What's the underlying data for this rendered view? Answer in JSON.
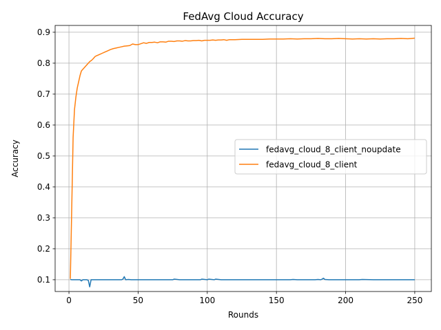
{
  "chart_data": {
    "type": "line",
    "title": "FedAvg Cloud Accuracy",
    "xlabel": "Rounds",
    "ylabel": "Accuracy",
    "xlim": [
      -10,
      262
    ],
    "ylim": [
      0.062,
      0.922
    ],
    "xticks": [
      0,
      50,
      100,
      150,
      200,
      250
    ],
    "yticks": [
      0.1,
      0.2,
      0.3,
      0.4,
      0.5,
      0.6,
      0.7,
      0.8,
      0.9
    ],
    "grid": true,
    "legend_position": "center-right",
    "series": [
      {
        "name": "fedavg_cloud_8_client_noupdate",
        "color": "#1f77b4",
        "x": [
          1,
          2,
          4,
          6,
          8,
          9,
          10,
          12,
          13,
          14,
          15,
          16,
          18,
          20,
          25,
          30,
          35,
          38,
          39,
          40,
          41,
          43,
          45,
          50,
          60,
          70,
          75,
          76,
          80,
          90,
          95,
          96,
          100,
          101,
          105,
          106,
          110,
          120,
          130,
          140,
          150,
          160,
          162,
          165,
          170,
          175,
          178,
          180,
          182,
          183,
          184,
          185,
          188,
          190,
          200,
          210,
          212,
          220,
          230,
          240,
          250
        ],
        "y": [
          0.101,
          0.1,
          0.1,
          0.1,
          0.1,
          0.096,
          0.1,
          0.1,
          0.1,
          0.098,
          0.077,
          0.1,
          0.1,
          0.1,
          0.1,
          0.1,
          0.1,
          0.1,
          0.102,
          0.11,
          0.1,
          0.101,
          0.1,
          0.1,
          0.1,
          0.1,
          0.1,
          0.102,
          0.1,
          0.1,
          0.1,
          0.102,
          0.1,
          0.102,
          0.1,
          0.102,
          0.1,
          0.1,
          0.1,
          0.1,
          0.1,
          0.1,
          0.101,
          0.1,
          0.1,
          0.1,
          0.1,
          0.101,
          0.1,
          0.102,
          0.105,
          0.101,
          0.1,
          0.1,
          0.1,
          0.1,
          0.101,
          0.1,
          0.1,
          0.1,
          0.1
        ]
      },
      {
        "name": "fedavg_cloud_8_client",
        "color": "#ff7f0e",
        "x": [
          1,
          2,
          3,
          4,
          5,
          6,
          7,
          8,
          9,
          10,
          11,
          12,
          13,
          14,
          15,
          16,
          17,
          18,
          19,
          20,
          22,
          24,
          26,
          28,
          30,
          32,
          34,
          36,
          38,
          40,
          42,
          44,
          46,
          48,
          50,
          52,
          54,
          56,
          58,
          60,
          62,
          64,
          66,
          68,
          70,
          72,
          74,
          76,
          78,
          80,
          82,
          84,
          86,
          88,
          90,
          92,
          94,
          96,
          98,
          100,
          102,
          104,
          106,
          108,
          110,
          112,
          114,
          116,
          118,
          120,
          125,
          130,
          135,
          140,
          145,
          150,
          155,
          160,
          165,
          170,
          175,
          180,
          185,
          190,
          195,
          200,
          205,
          210,
          215,
          220,
          225,
          230,
          235,
          240,
          245,
          250
        ],
        "y": [
          0.103,
          0.33,
          0.56,
          0.65,
          0.69,
          0.72,
          0.74,
          0.76,
          0.775,
          0.78,
          0.785,
          0.79,
          0.795,
          0.8,
          0.805,
          0.808,
          0.812,
          0.817,
          0.822,
          0.824,
          0.828,
          0.832,
          0.836,
          0.84,
          0.844,
          0.847,
          0.849,
          0.851,
          0.853,
          0.855,
          0.856,
          0.857,
          0.862,
          0.86,
          0.86,
          0.863,
          0.866,
          0.864,
          0.867,
          0.867,
          0.868,
          0.866,
          0.869,
          0.869,
          0.868,
          0.871,
          0.871,
          0.87,
          0.872,
          0.872,
          0.871,
          0.873,
          0.872,
          0.872,
          0.873,
          0.873,
          0.874,
          0.872,
          0.874,
          0.874,
          0.874,
          0.875,
          0.874,
          0.875,
          0.875,
          0.876,
          0.874,
          0.876,
          0.876,
          0.876,
          0.877,
          0.877,
          0.877,
          0.877,
          0.878,
          0.878,
          0.878,
          0.879,
          0.878,
          0.879,
          0.879,
          0.88,
          0.879,
          0.879,
          0.88,
          0.879,
          0.878,
          0.879,
          0.878,
          0.879,
          0.878,
          0.879,
          0.879,
          0.88,
          0.879,
          0.881
        ]
      }
    ]
  }
}
